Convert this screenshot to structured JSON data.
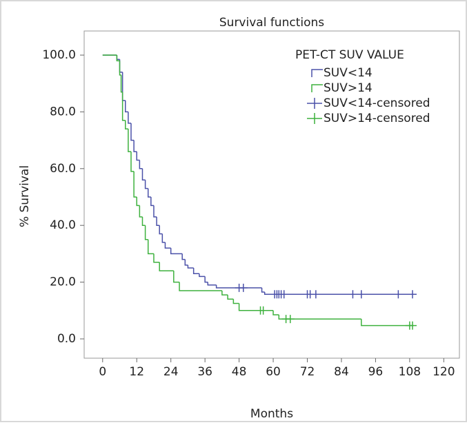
{
  "chart_data": {
    "type": "line",
    "title": "Survival functions",
    "x_label": "Months",
    "y_label": "% Survival",
    "legend_title": "PET-CT SUV VALUE",
    "xlim": [
      -6.5,
      125.5
    ],
    "ylim": [
      -6.8,
      108.5
    ],
    "xticks": [
      0,
      12,
      24,
      36,
      48,
      60,
      72,
      84,
      96,
      108,
      120
    ],
    "yticks": [
      {
        "value": 0,
        "label": "0.0"
      },
      {
        "value": 20,
        "label": "20.0"
      },
      {
        "value": 40,
        "label": "40.0"
      },
      {
        "value": 60,
        "label": "60.0"
      },
      {
        "value": 80,
        "label": "80.0"
      },
      {
        "value": 100,
        "label": "100.0"
      }
    ],
    "series": [
      {
        "name": "SUV<14",
        "color": "#4a50a8",
        "style": "step",
        "x": [
          0,
          5,
          6,
          7,
          8,
          9,
          10,
          11,
          12,
          13,
          14,
          15,
          16,
          17,
          18,
          19,
          20,
          21,
          22,
          24,
          28,
          29,
          30,
          32,
          34,
          36,
          37,
          40,
          56,
          57,
          109
        ],
        "values": [
          100,
          98.5,
          94,
          84,
          80,
          76,
          70,
          66,
          63,
          60,
          56,
          53,
          50,
          47,
          43,
          40,
          37,
          34,
          32,
          30,
          28,
          26,
          25,
          23,
          22,
          20,
          19,
          18,
          16.5,
          15.7,
          15.7
        ]
      },
      {
        "name": "SUV>14",
        "color": "#3db13d",
        "style": "step",
        "x": [
          0,
          5,
          6,
          6.5,
          7,
          8,
          9,
          10,
          11,
          12,
          13,
          14,
          15,
          16,
          18,
          20,
          25,
          27,
          42,
          44,
          46,
          48,
          60,
          62,
          91,
          109
        ],
        "values": [
          100,
          98,
          93,
          87,
          77,
          74,
          66,
          59,
          50,
          47,
          43,
          40,
          35,
          30,
          27,
          24,
          20,
          17,
          15.5,
          14,
          12.5,
          10,
          8.5,
          7,
          4.7,
          4.7
        ]
      },
      {
        "name": "SUV<14-censored",
        "color": "#4a50a8",
        "style": "censored",
        "x": [
          48,
          49.5,
          60.5,
          61.3,
          62,
          62.8,
          63.8,
          72,
          73,
          75,
          88,
          91,
          104,
          109
        ],
        "values": [
          18,
          18,
          15.7,
          15.7,
          15.7,
          15.7,
          15.7,
          15.7,
          15.7,
          15.7,
          15.7,
          15.7,
          15.7,
          15.7
        ]
      },
      {
        "name": "SUV>14-censored",
        "color": "#3db13d",
        "style": "censored",
        "x": [
          55.5,
          56.5,
          64.5,
          66,
          108,
          109
        ],
        "values": [
          10,
          10,
          7,
          7,
          4.7,
          4.7
        ]
      }
    ]
  }
}
